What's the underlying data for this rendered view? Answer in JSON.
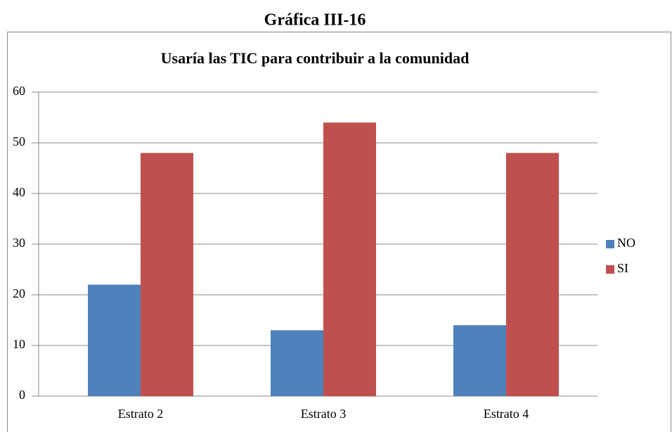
{
  "heading": "Gráfica III-16",
  "chart_data": {
    "type": "bar",
    "title": "Usaría las TIC para contribuir a la comunidad",
    "categories": [
      "Estrato 2",
      "Estrato 3",
      "Estrato 4"
    ],
    "series": [
      {
        "name": "NO",
        "color": "#4f81bd",
        "values": [
          22,
          13,
          14
        ]
      },
      {
        "name": "SI",
        "color": "#c0504d",
        "values": [
          48,
          54,
          48
        ]
      }
    ],
    "ylim": [
      0,
      60
    ],
    "yticks": [
      0,
      10,
      20,
      30,
      40,
      50,
      60
    ],
    "grid": true,
    "legend": "right"
  }
}
